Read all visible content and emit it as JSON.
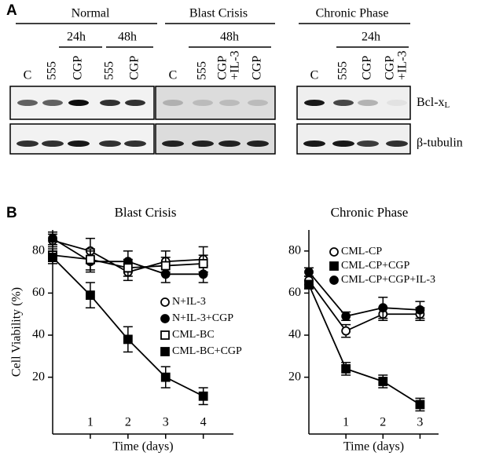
{
  "panel_a": {
    "label": "A",
    "groups": [
      {
        "name": "Normal",
        "timepoints": [
          "24h",
          "48h"
        ],
        "lanes": [
          [
            "C"
          ],
          [
            "555"
          ],
          [
            "CGP"
          ],
          [
            "555"
          ],
          [
            "CGP"
          ]
        ]
      },
      {
        "name": "Blast Crisis",
        "timepoints": [
          "48h"
        ],
        "lanes": [
          [
            "C"
          ],
          [
            "555"
          ],
          [
            "CGP",
            "+IL-3"
          ],
          [
            "CGP"
          ]
        ]
      },
      {
        "name": "Chronic Phase",
        "timepoints": [
          "24h"
        ],
        "lanes": [
          [
            "C"
          ],
          [
            "555"
          ],
          [
            "CGP"
          ],
          [
            "CGP",
            "+IL-3"
          ]
        ]
      }
    ],
    "rows": [
      {
        "text": "Bcl-x",
        "subscript": "L"
      },
      {
        "text": "β-tubulin"
      }
    ]
  },
  "panel_b": {
    "label": "B",
    "y_label": "Cell Viability (%)"
  },
  "chart_data": [
    {
      "type": "line",
      "title": "Blast Crisis",
      "x_label": "Time (days)",
      "x": [
        0,
        1,
        2,
        3,
        4
      ],
      "xlim": [
        0,
        4.8
      ],
      "xticks": [
        1,
        2,
        3,
        4
      ],
      "ylim": [
        -7,
        90
      ],
      "yticks": [
        20,
        40,
        60,
        80
      ],
      "legend": "right",
      "series": [
        {
          "name": "N+IL-3",
          "marker": "circle-open",
          "color": "#000000",
          "values": [
            85,
            80,
            70,
            75,
            76
          ],
          "errors": [
            3,
            6,
            4,
            5,
            6
          ]
        },
        {
          "name": "N+IL-3+CGP",
          "marker": "circle-filled",
          "color": "#000000",
          "values": [
            86,
            75,
            75,
            69,
            69
          ],
          "errors": [
            3,
            5,
            5,
            4,
            4
          ]
        },
        {
          "name": "CML-BC",
          "marker": "square-open",
          "color": "#000000",
          "values": [
            78,
            76,
            72,
            73,
            74
          ],
          "errors": [
            3,
            5,
            4,
            4,
            4
          ]
        },
        {
          "name": "CML-BC+CGP",
          "marker": "square-filled",
          "color": "#000000",
          "values": [
            77,
            59,
            38,
            20,
            11
          ],
          "errors": [
            3,
            6,
            6,
            5,
            4
          ]
        }
      ]
    },
    {
      "type": "line",
      "title": "Chronic Phase",
      "x_label": "Time (days)",
      "x": [
        0,
        1,
        2,
        3
      ],
      "xlim": [
        0,
        3.5
      ],
      "xticks": [
        1,
        2,
        3
      ],
      "ylim": [
        -7,
        90
      ],
      "yticks": [
        20,
        40,
        60,
        80
      ],
      "legend": "top",
      "series": [
        {
          "name": "CML-CP",
          "marker": "circle-open",
          "color": "#000000",
          "values": [
            66,
            42,
            50,
            50
          ],
          "errors": [
            2,
            3,
            3,
            3
          ]
        },
        {
          "name": "CML-CP+CGP",
          "marker": "square-filled",
          "color": "#000000",
          "values": [
            64,
            24,
            18,
            7
          ],
          "errors": [
            2,
            3,
            3,
            3
          ]
        },
        {
          "name": "CML-CP+CGP+IL-3",
          "marker": "circle-filled",
          "color": "#000000",
          "values": [
            70,
            49,
            53,
            52
          ],
          "errors": [
            2,
            2,
            5,
            4
          ]
        }
      ]
    }
  ]
}
